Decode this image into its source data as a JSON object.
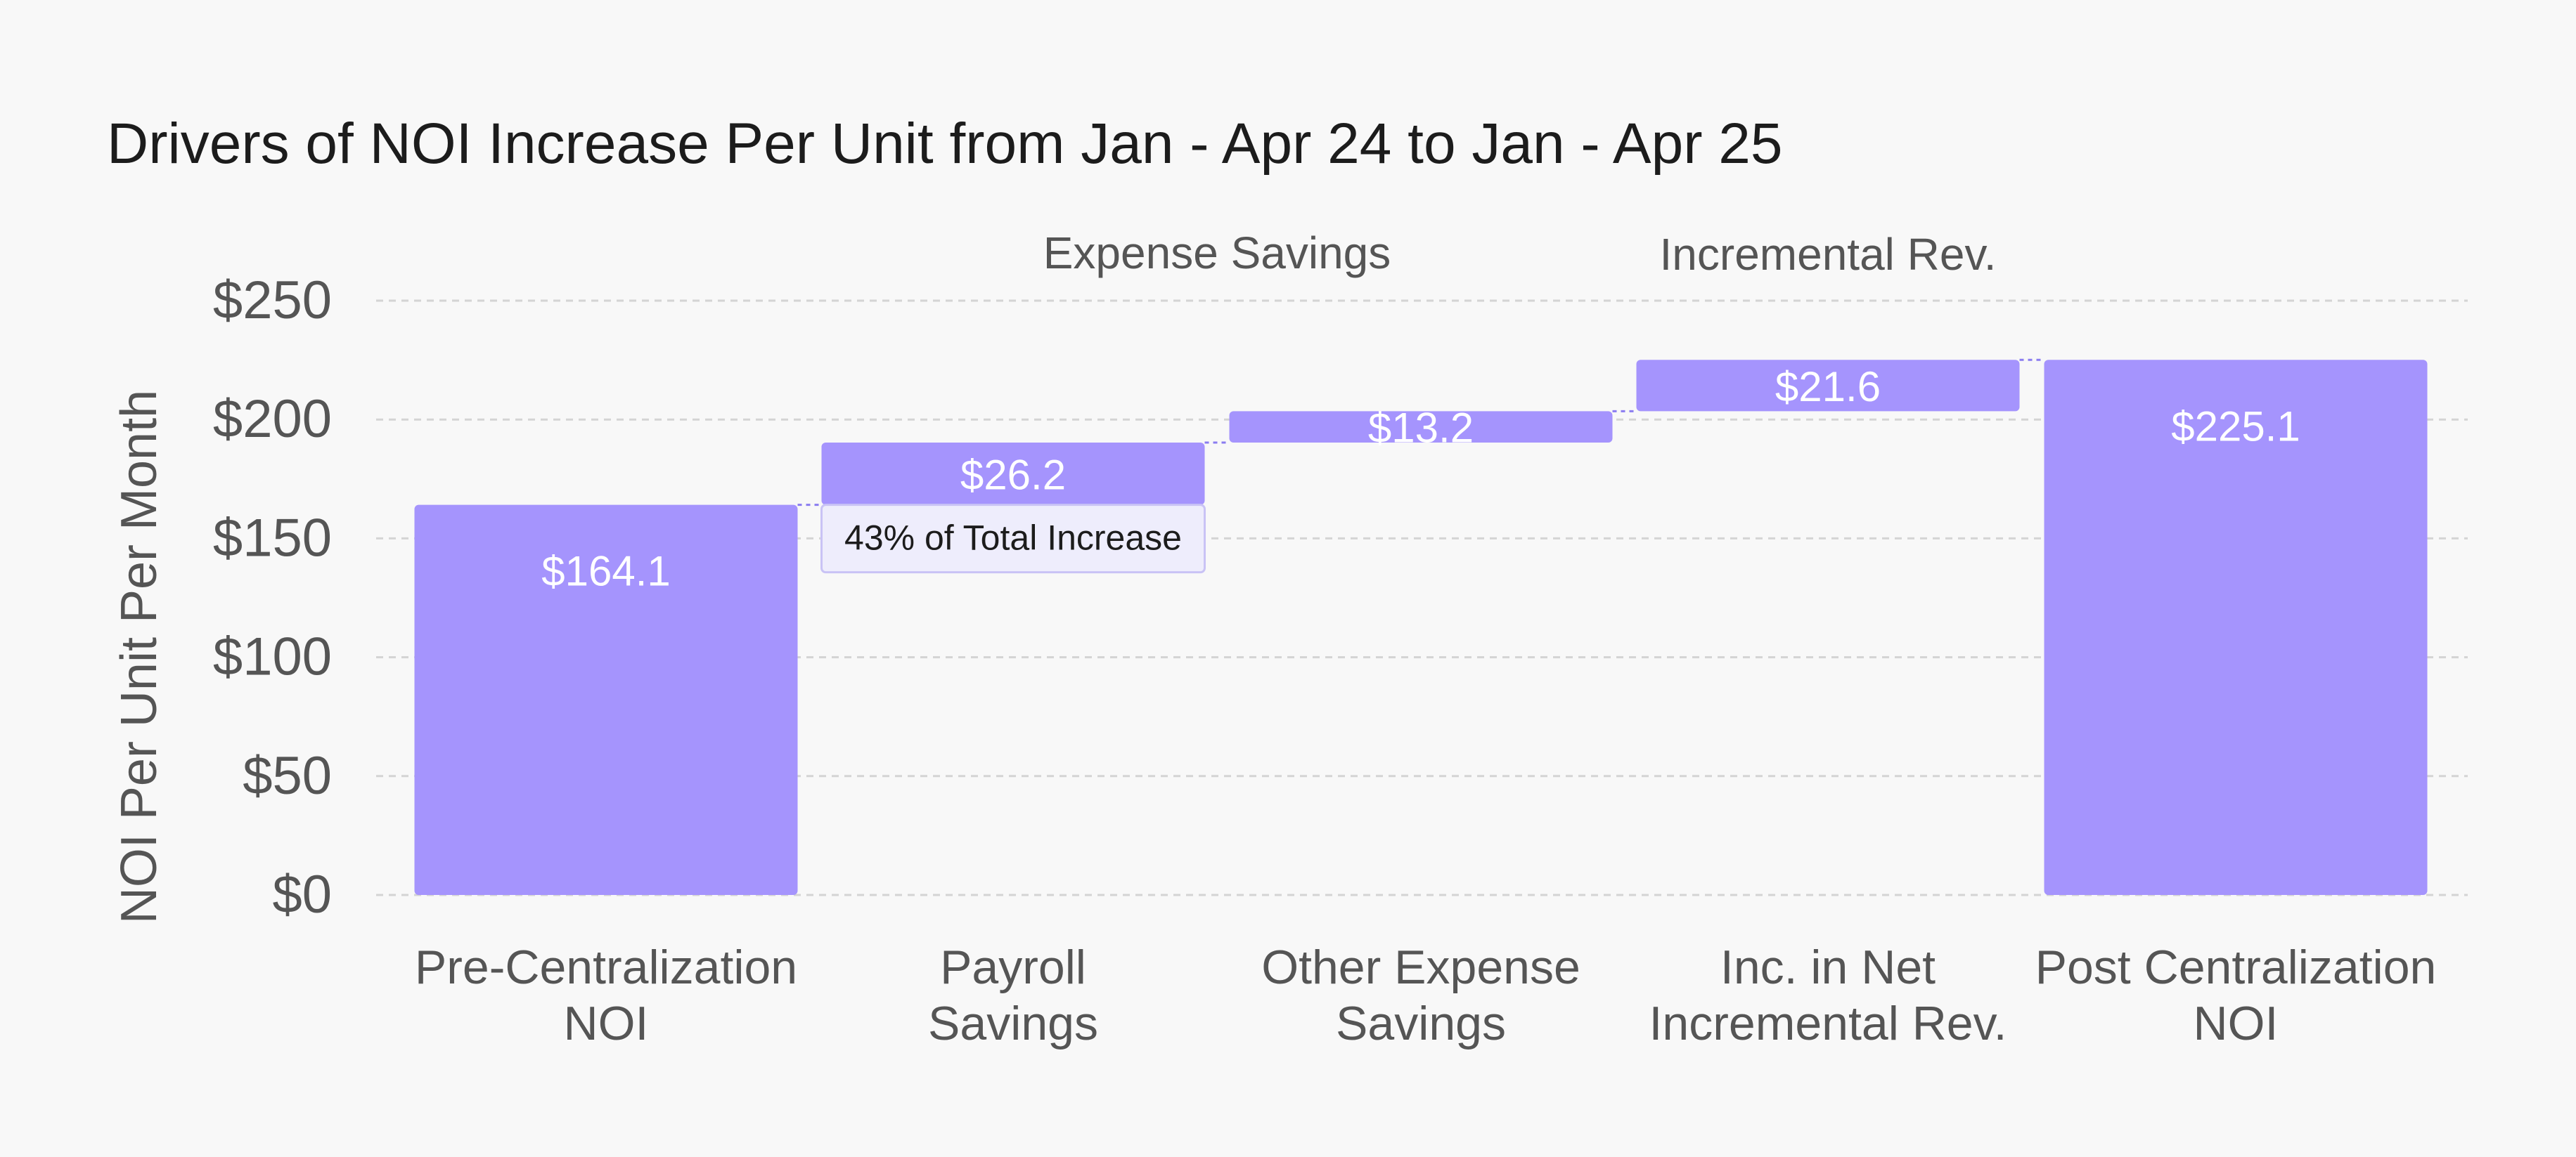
{
  "chart_data": {
    "type": "bar",
    "subtype": "waterfall",
    "title": "Drivers of NOI Increase Per Unit from Jan - Apr 24 to Jan - Apr 25",
    "ylabel": "NOI Per Unit Per Month",
    "xlabel": "",
    "ylim": [
      0,
      250
    ],
    "yticks": [
      0,
      50,
      100,
      150,
      200,
      250
    ],
    "ytick_labels": [
      "$0",
      "$50",
      "$100",
      "$150",
      "$200",
      "$250"
    ],
    "grid": true,
    "categories": [
      [
        "Pre-Centralization",
        "NOI"
      ],
      [
        "Payroll",
        "Savings"
      ],
      [
        "Other Expense",
        "Savings"
      ],
      [
        "Inc. in Net",
        "Incremental Rev."
      ],
      [
        "Post Centralization",
        "NOI"
      ]
    ],
    "bars": [
      {
        "kind": "total",
        "value": 164.1,
        "label": "$164.1"
      },
      {
        "kind": "delta",
        "value": 26.2,
        "label": "$26.2"
      },
      {
        "kind": "delta",
        "value": 13.2,
        "label": "$13.2"
      },
      {
        "kind": "delta",
        "value": 21.6,
        "label": "$21.6"
      },
      {
        "kind": "total",
        "value": 225.1,
        "label": "$225.1"
      }
    ],
    "annotations": {
      "payroll_share": "43% of Total Increase",
      "group_labels": [
        "Expense Savings",
        "Incremental Rev."
      ]
    },
    "colors": {
      "bar": "#a594fd",
      "callout_fill": "#eeedfc",
      "callout_border": "#c9c3f5",
      "grid": "#d4d4d4",
      "text": "#555555",
      "title": "#1c1c1c",
      "bar_label": "#ffffff"
    }
  }
}
